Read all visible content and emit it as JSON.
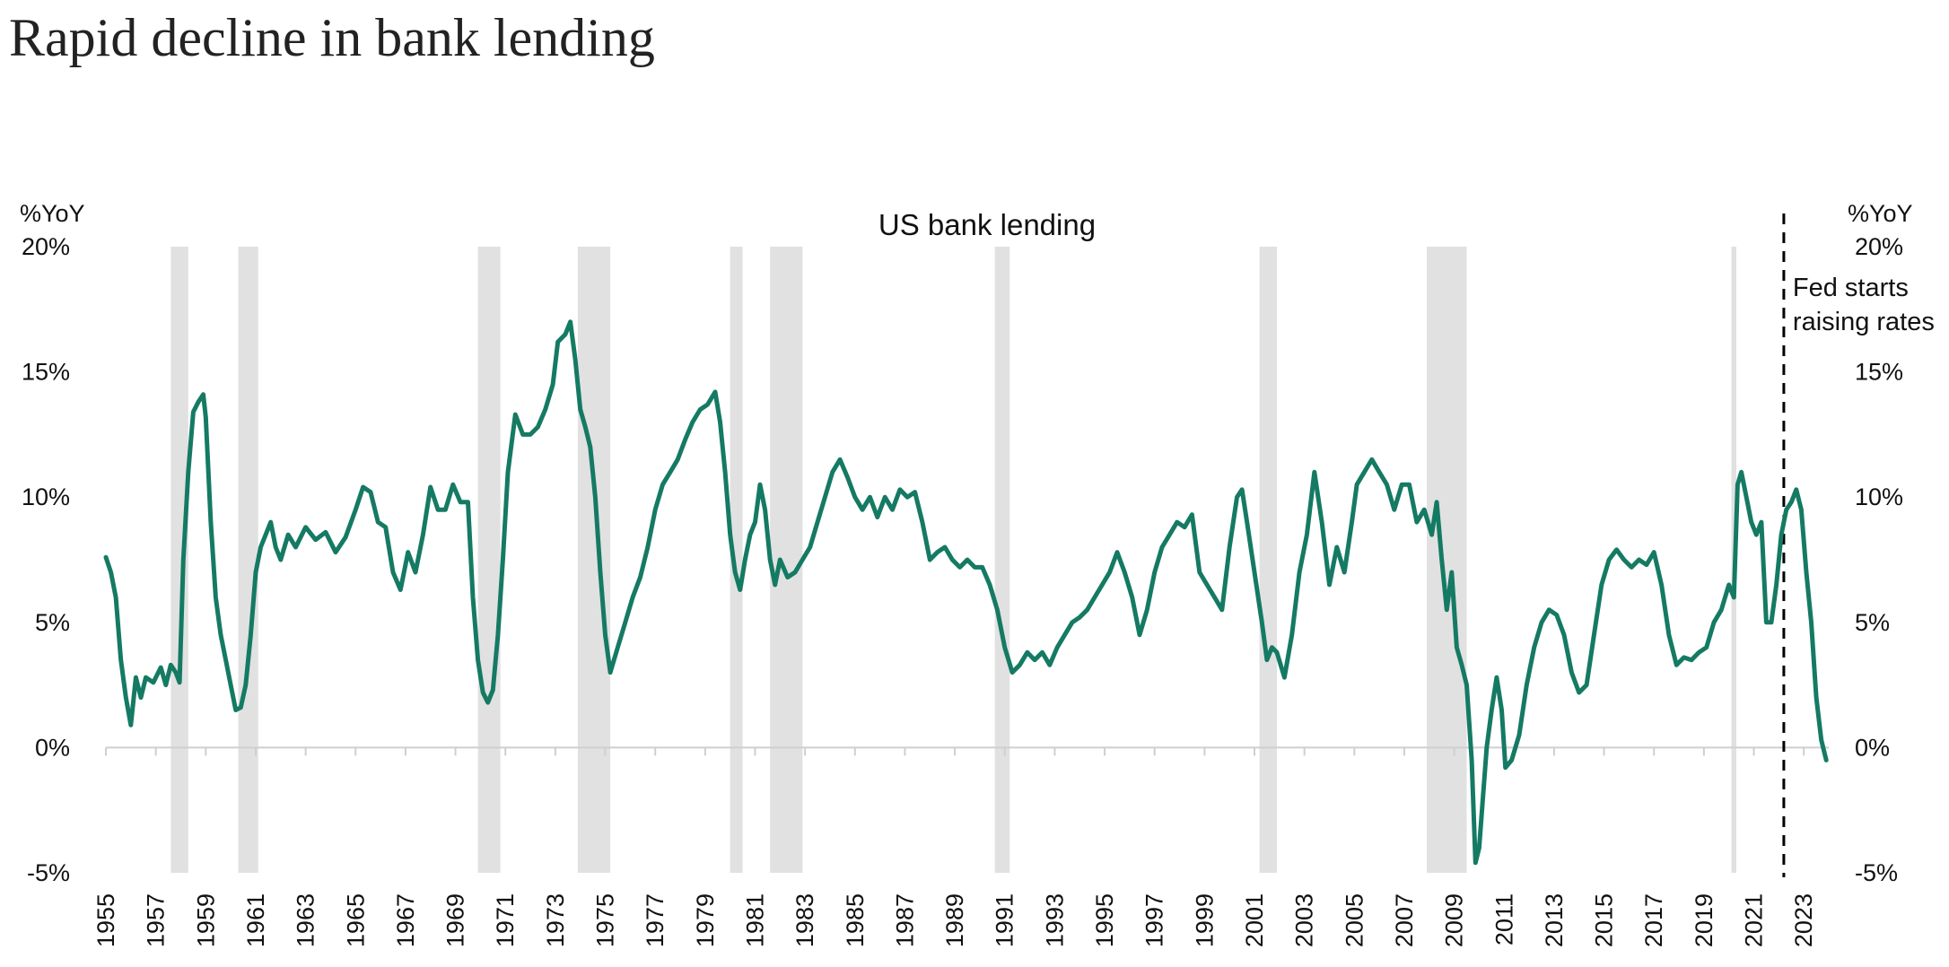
{
  "title": "Rapid decline in bank lending",
  "chart_data": {
    "type": "line",
    "title": "US bank lending",
    "y_unit_left": "%YoY",
    "y_unit_right": "%YoY",
    "ylim": [
      -5,
      20
    ],
    "y_ticks": [
      {
        "v": 20,
        "label": "20%"
      },
      {
        "v": 15,
        "label": "15%"
      },
      {
        "v": 10,
        "label": "10%"
      },
      {
        "v": 5,
        "label": "5%"
      },
      {
        "v": 0,
        "label": "0%"
      },
      {
        "v": -5,
        "label": "-5%"
      }
    ],
    "xlim": [
      1955,
      2024
    ],
    "x_ticks": [
      "1955",
      "1957",
      "1959",
      "1961",
      "1963",
      "1965",
      "1967",
      "1969",
      "1971",
      "1973",
      "1975",
      "1977",
      "1979",
      "1981",
      "1983",
      "1985",
      "1987",
      "1989",
      "1991",
      "1993",
      "1995",
      "1997",
      "1999",
      "2001",
      "2003",
      "2005",
      "2007",
      "2009",
      "2011",
      "2013",
      "2015",
      "2017",
      "2019",
      "2021",
      "2023"
    ],
    "grid": false,
    "colors": {
      "line": "#157a63",
      "recession": "#e1e1e1",
      "axis": "#cfcfcf",
      "marker": "#000000"
    },
    "recessions": [
      [
        1957.6,
        1958.3
      ],
      [
        1960.3,
        1961.1
      ],
      [
        1969.9,
        1970.8
      ],
      [
        1973.9,
        1975.2
      ],
      [
        1980.0,
        1980.5
      ],
      [
        1981.6,
        1982.9
      ],
      [
        1990.6,
        1991.2
      ],
      [
        2001.2,
        2001.9
      ],
      [
        2007.9,
        2009.5
      ],
      [
        2020.1,
        2020.3
      ]
    ],
    "event": {
      "x": 2022.2,
      "label_lines": [
        "Fed starts",
        "raising rates"
      ]
    },
    "series": [
      {
        "values": [
          [
            1955.0,
            7.6
          ],
          [
            1955.2,
            7.0
          ],
          [
            1955.4,
            6.0
          ],
          [
            1955.6,
            3.5
          ],
          [
            1955.8,
            2.0
          ],
          [
            1956.0,
            0.9
          ],
          [
            1956.2,
            2.8
          ],
          [
            1956.4,
            2.0
          ],
          [
            1956.6,
            2.8
          ],
          [
            1956.9,
            2.6
          ],
          [
            1957.2,
            3.2
          ],
          [
            1957.4,
            2.5
          ],
          [
            1957.6,
            3.3
          ],
          [
            1957.8,
            3.0
          ],
          [
            1957.95,
            2.6
          ],
          [
            1958.1,
            7.5
          ],
          [
            1958.3,
            11.0
          ],
          [
            1958.5,
            13.4
          ],
          [
            1958.7,
            13.8
          ],
          [
            1958.9,
            14.1
          ],
          [
            1959.0,
            13.2
          ],
          [
            1959.2,
            9.0
          ],
          [
            1959.4,
            6.0
          ],
          [
            1959.6,
            4.5
          ],
          [
            1959.8,
            3.5
          ],
          [
            1960.0,
            2.5
          ],
          [
            1960.2,
            1.5
          ],
          [
            1960.4,
            1.6
          ],
          [
            1960.6,
            2.5
          ],
          [
            1960.8,
            4.5
          ],
          [
            1961.0,
            7.0
          ],
          [
            1961.2,
            8.0
          ],
          [
            1961.4,
            8.5
          ],
          [
            1961.6,
            9.0
          ],
          [
            1961.8,
            8.0
          ],
          [
            1962.0,
            7.5
          ],
          [
            1962.3,
            8.5
          ],
          [
            1962.6,
            8.0
          ],
          [
            1963.0,
            8.8
          ],
          [
            1963.4,
            8.3
          ],
          [
            1963.8,
            8.6
          ],
          [
            1964.2,
            7.8
          ],
          [
            1964.6,
            8.4
          ],
          [
            1965.0,
            9.5
          ],
          [
            1965.3,
            10.4
          ],
          [
            1965.6,
            10.2
          ],
          [
            1965.9,
            9.0
          ],
          [
            1966.2,
            8.8
          ],
          [
            1966.5,
            7.0
          ],
          [
            1966.8,
            6.3
          ],
          [
            1967.1,
            7.8
          ],
          [
            1967.4,
            7.0
          ],
          [
            1967.7,
            8.5
          ],
          [
            1968.0,
            10.4
          ],
          [
            1968.3,
            9.5
          ],
          [
            1968.6,
            9.5
          ],
          [
            1968.9,
            10.5
          ],
          [
            1969.2,
            9.8
          ],
          [
            1969.5,
            9.8
          ],
          [
            1969.7,
            6.0
          ],
          [
            1969.9,
            3.5
          ],
          [
            1970.1,
            2.2
          ],
          [
            1970.3,
            1.8
          ],
          [
            1970.5,
            2.3
          ],
          [
            1970.7,
            4.5
          ],
          [
            1970.9,
            7.5
          ],
          [
            1971.1,
            11.0
          ],
          [
            1971.4,
            13.3
          ],
          [
            1971.7,
            12.5
          ],
          [
            1972.0,
            12.5
          ],
          [
            1972.3,
            12.8
          ],
          [
            1972.6,
            13.5
          ],
          [
            1972.9,
            14.5
          ],
          [
            1973.1,
            16.2
          ],
          [
            1973.4,
            16.5
          ],
          [
            1973.6,
            17.0
          ],
          [
            1973.8,
            15.5
          ],
          [
            1974.0,
            13.5
          ],
          [
            1974.2,
            12.8
          ],
          [
            1974.4,
            12.0
          ],
          [
            1974.6,
            10.0
          ],
          [
            1974.8,
            7.0
          ],
          [
            1975.0,
            4.5
          ],
          [
            1975.2,
            3.0
          ],
          [
            1975.5,
            4.0
          ],
          [
            1975.8,
            5.0
          ],
          [
            1976.1,
            6.0
          ],
          [
            1976.4,
            6.8
          ],
          [
            1976.7,
            8.0
          ],
          [
            1977.0,
            9.5
          ],
          [
            1977.3,
            10.5
          ],
          [
            1977.6,
            11.0
          ],
          [
            1977.9,
            11.5
          ],
          [
            1978.2,
            12.3
          ],
          [
            1978.5,
            13.0
          ],
          [
            1978.8,
            13.5
          ],
          [
            1979.1,
            13.7
          ],
          [
            1979.4,
            14.2
          ],
          [
            1979.6,
            13.0
          ],
          [
            1979.8,
            11.0
          ],
          [
            1980.0,
            8.5
          ],
          [
            1980.2,
            7.0
          ],
          [
            1980.4,
            6.3
          ],
          [
            1980.6,
            7.5
          ],
          [
            1980.8,
            8.5
          ],
          [
            1981.0,
            9.0
          ],
          [
            1981.2,
            10.5
          ],
          [
            1981.4,
            9.5
          ],
          [
            1981.6,
            7.5
          ],
          [
            1981.8,
            6.5
          ],
          [
            1982.0,
            7.5
          ],
          [
            1982.3,
            6.8
          ],
          [
            1982.6,
            7.0
          ],
          [
            1982.9,
            7.5
          ],
          [
            1983.2,
            8.0
          ],
          [
            1983.5,
            9.0
          ],
          [
            1983.8,
            10.0
          ],
          [
            1984.1,
            11.0
          ],
          [
            1984.4,
            11.5
          ],
          [
            1984.7,
            10.8
          ],
          [
            1985.0,
            10.0
          ],
          [
            1985.3,
            9.5
          ],
          [
            1985.6,
            10.0
          ],
          [
            1985.9,
            9.2
          ],
          [
            1986.2,
            10.0
          ],
          [
            1986.5,
            9.5
          ],
          [
            1986.8,
            10.3
          ],
          [
            1987.1,
            10.0
          ],
          [
            1987.4,
            10.2
          ],
          [
            1987.7,
            9.0
          ],
          [
            1988.0,
            7.5
          ],
          [
            1988.3,
            7.8
          ],
          [
            1988.6,
            8.0
          ],
          [
            1988.9,
            7.5
          ],
          [
            1989.2,
            7.2
          ],
          [
            1989.5,
            7.5
          ],
          [
            1989.8,
            7.2
          ],
          [
            1990.1,
            7.2
          ],
          [
            1990.4,
            6.5
          ],
          [
            1990.7,
            5.5
          ],
          [
            1991.0,
            4.0
          ],
          [
            1991.3,
            3.0
          ],
          [
            1991.6,
            3.3
          ],
          [
            1991.9,
            3.8
          ],
          [
            1992.2,
            3.5
          ],
          [
            1992.5,
            3.8
          ],
          [
            1992.8,
            3.3
          ],
          [
            1993.1,
            4.0
          ],
          [
            1993.4,
            4.5
          ],
          [
            1993.7,
            5.0
          ],
          [
            1994.0,
            5.2
          ],
          [
            1994.3,
            5.5
          ],
          [
            1994.6,
            6.0
          ],
          [
            1994.9,
            6.5
          ],
          [
            1995.2,
            7.0
          ],
          [
            1995.5,
            7.8
          ],
          [
            1995.8,
            7.0
          ],
          [
            1996.1,
            6.0
          ],
          [
            1996.4,
            4.5
          ],
          [
            1996.7,
            5.5
          ],
          [
            1997.0,
            7.0
          ],
          [
            1997.3,
            8.0
          ],
          [
            1997.6,
            8.5
          ],
          [
            1997.9,
            9.0
          ],
          [
            1998.2,
            8.8
          ],
          [
            1998.5,
            9.3
          ],
          [
            1998.8,
            7.0
          ],
          [
            1999.1,
            6.5
          ],
          [
            1999.4,
            6.0
          ],
          [
            1999.7,
            5.5
          ],
          [
            2000.0,
            8.0
          ],
          [
            2000.3,
            10.0
          ],
          [
            2000.5,
            10.3
          ],
          [
            2000.7,
            9.0
          ],
          [
            2001.0,
            7.0
          ],
          [
            2001.3,
            5.0
          ],
          [
            2001.5,
            3.5
          ],
          [
            2001.7,
            4.0
          ],
          [
            2001.9,
            3.8
          ],
          [
            2002.2,
            2.8
          ],
          [
            2002.5,
            4.5
          ],
          [
            2002.8,
            7.0
          ],
          [
            2003.1,
            8.5
          ],
          [
            2003.4,
            11.0
          ],
          [
            2003.7,
            9.0
          ],
          [
            2004.0,
            6.5
          ],
          [
            2004.3,
            8.0
          ],
          [
            2004.6,
            7.0
          ],
          [
            2004.9,
            9.0
          ],
          [
            2005.1,
            10.5
          ],
          [
            2005.4,
            11.0
          ],
          [
            2005.7,
            11.5
          ],
          [
            2006.0,
            11.0
          ],
          [
            2006.3,
            10.5
          ],
          [
            2006.6,
            9.5
          ],
          [
            2006.9,
            10.5
          ],
          [
            2007.2,
            10.5
          ],
          [
            2007.5,
            9.0
          ],
          [
            2007.8,
            9.5
          ],
          [
            2008.1,
            8.5
          ],
          [
            2008.3,
            9.8
          ],
          [
            2008.5,
            7.5
          ],
          [
            2008.7,
            5.5
          ],
          [
            2008.9,
            7.0
          ],
          [
            2009.1,
            4.0
          ],
          [
            2009.3,
            3.3
          ],
          [
            2009.5,
            2.5
          ],
          [
            2009.7,
            -0.5
          ],
          [
            2009.85,
            -4.6
          ],
          [
            2010.0,
            -4.0
          ],
          [
            2010.15,
            -2.0
          ],
          [
            2010.3,
            0.0
          ],
          [
            2010.5,
            1.5
          ],
          [
            2010.7,
            2.8
          ],
          [
            2010.9,
            1.5
          ],
          [
            2011.05,
            -0.8
          ],
          [
            2011.3,
            -0.5
          ],
          [
            2011.6,
            0.5
          ],
          [
            2011.9,
            2.5
          ],
          [
            2012.2,
            4.0
          ],
          [
            2012.5,
            5.0
          ],
          [
            2012.8,
            5.5
          ],
          [
            2013.1,
            5.3
          ],
          [
            2013.4,
            4.5
          ],
          [
            2013.7,
            3.0
          ],
          [
            2014.0,
            2.2
          ],
          [
            2014.3,
            2.5
          ],
          [
            2014.6,
            4.5
          ],
          [
            2014.9,
            6.5
          ],
          [
            2015.2,
            7.5
          ],
          [
            2015.5,
            7.9
          ],
          [
            2015.8,
            7.5
          ],
          [
            2016.1,
            7.2
          ],
          [
            2016.4,
            7.5
          ],
          [
            2016.7,
            7.3
          ],
          [
            2017.0,
            7.8
          ],
          [
            2017.3,
            6.5
          ],
          [
            2017.6,
            4.5
          ],
          [
            2017.9,
            3.3
          ],
          [
            2018.2,
            3.6
          ],
          [
            2018.5,
            3.5
          ],
          [
            2018.8,
            3.8
          ],
          [
            2019.1,
            4.0
          ],
          [
            2019.4,
            5.0
          ],
          [
            2019.7,
            5.5
          ],
          [
            2020.0,
            6.5
          ],
          [
            2020.2,
            6.0
          ],
          [
            2020.35,
            10.5
          ],
          [
            2020.5,
            11.0
          ],
          [
            2020.7,
            10.0
          ],
          [
            2020.9,
            9.0
          ],
          [
            2021.1,
            8.5
          ],
          [
            2021.3,
            9.0
          ],
          [
            2021.5,
            5.0
          ],
          [
            2021.7,
            5.0
          ],
          [
            2021.9,
            6.5
          ],
          [
            2022.1,
            8.5
          ],
          [
            2022.3,
            9.5
          ],
          [
            2022.5,
            9.8
          ],
          [
            2022.7,
            10.3
          ],
          [
            2022.9,
            9.5
          ],
          [
            2023.1,
            7.0
          ],
          [
            2023.3,
            5.0
          ],
          [
            2023.5,
            2.0
          ],
          [
            2023.7,
            0.3
          ],
          [
            2023.9,
            -0.5
          ]
        ]
      }
    ]
  }
}
